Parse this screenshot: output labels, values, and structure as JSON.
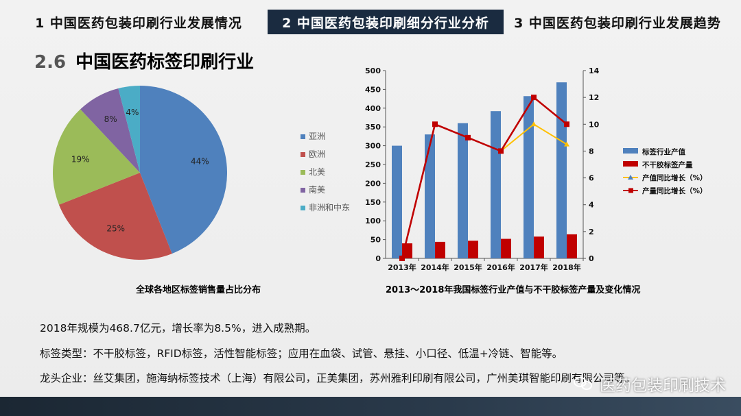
{
  "tabs": [
    {
      "label": "1  中国医药包装印刷行业发展情况",
      "active": false
    },
    {
      "label": "2  中国医药包装印刷细分行业分析",
      "active": true
    },
    {
      "label": "3  中国医药包装印刷行业发展趋势",
      "active": false
    }
  ],
  "section": {
    "number": "2.6",
    "title": "中国医药标签印刷行业"
  },
  "captions": {
    "pie": "全球各地区标签销售量占比分布",
    "combo": "2013～2018年我国标签行业产值与不干胶标签产量及变化情况"
  },
  "body_lines": [
    "2018年规模为468.7亿元，增长率为8.5%，进入成熟期。",
    "标签类型：不干胶标签，RFID标签，活性智能标签；应用在血袋、试管、悬挂、小口径、低温+冷链、智能等。",
    "龙头企业：丝艾集团，施海纳标签技术（上海）有限公司，正美集团，苏州雅利印刷有限公司，广州美琪智能印刷有限公司等。"
  ],
  "watermark": "医药包装印刷技术",
  "colors": {
    "tab_active_bg": "#1a2b40",
    "accent_blue": "#4f81bd",
    "accent_red": "#c0504d"
  },
  "chart_data": [
    {
      "type": "pie",
      "title": "全球各地区标签销售量占比分布",
      "slices": [
        {
          "label": "亚洲",
          "value": 44,
          "display": "44%",
          "color": "#4f81bd"
        },
        {
          "label": "欧洲",
          "value": 25,
          "display": "25%",
          "color": "#c0504d"
        },
        {
          "label": "北美",
          "value": 19,
          "display": "19%",
          "color": "#9bbb59"
        },
        {
          "label": "南美",
          "value": 8,
          "display": "8%",
          "color": "#8064a2"
        },
        {
          "label": "非洲和中东",
          "value": 4,
          "display": "4%",
          "color": "#4bacc6"
        }
      ],
      "legend_position": "right"
    },
    {
      "type": "bar",
      "title": "2013～2018年我国标签行业产值与不干胶标签产量及变化情况",
      "categories": [
        "2013年",
        "2014年",
        "2015年",
        "2016年",
        "2017年",
        "2018年"
      ],
      "ylim_left": [
        0,
        500
      ],
      "yticks_left": [
        0,
        50,
        100,
        150,
        200,
        250,
        300,
        350,
        400,
        450,
        500
      ],
      "ylim_right": [
        0,
        14
      ],
      "yticks_right": [
        0,
        2,
        4,
        6,
        8,
        10,
        12,
        14
      ],
      "grid": false,
      "legend_position": "right",
      "series": [
        {
          "name": "标签行业产值",
          "type": "bar",
          "axis": "left",
          "color": "#4f81bd",
          "values": [
            300,
            330,
            360,
            392,
            432,
            468.7
          ]
        },
        {
          "name": "不干胶标签产量",
          "type": "bar",
          "axis": "left",
          "color": "#c00000",
          "values": [
            40,
            44,
            47,
            52,
            58,
            64
          ]
        },
        {
          "name": "产值同比增长（%）",
          "type": "line",
          "axis": "right",
          "color": "#ffc000",
          "marker": "triangle",
          "values": [
            null,
            null,
            null,
            8,
            10,
            8.5
          ]
        },
        {
          "name": "产量同比增长（%）",
          "type": "line",
          "axis": "right",
          "color": "#c00000",
          "marker": "square",
          "values": [
            0,
            10,
            9,
            8,
            12,
            10
          ]
        }
      ]
    }
  ]
}
